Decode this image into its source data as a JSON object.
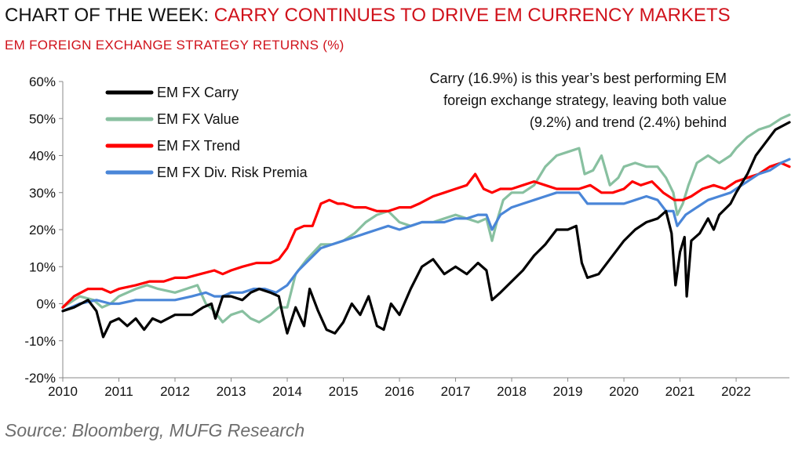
{
  "header": {
    "title_prefix": "CHART OF THE WEEK: ",
    "title_main": "CARRY CONTINUES TO DRIVE EM CURRENCY MARKETS",
    "subtitle": "EM FOREIGN EXCHANGE STRATEGY RETURNS (%)"
  },
  "annotation": {
    "lines": [
      "Carry (16.9%) is this year’s best performing EM",
      "foreign exchange strategy, leaving both value",
      "(9.2%) and trend (2.4%) behind"
    ]
  },
  "source": "Source: Bloomberg, MUFG Research",
  "chart_data": {
    "type": "line",
    "title": "EM FOREIGN EXCHANGE STRATEGY RETURNS (%)",
    "xlabel": "",
    "ylabel": "",
    "xlim": [
      2010.0,
      2022.95
    ],
    "ylim": [
      -20,
      60
    ],
    "y_ticks": [
      "-20%",
      "-10%",
      "0%",
      "10%",
      "20%",
      "30%",
      "40%",
      "50%",
      "60%"
    ],
    "x_ticks": [
      "2010",
      "2011",
      "2012",
      "2013",
      "2014",
      "2015",
      "2016",
      "2017",
      "2018",
      "2019",
      "2020",
      "2021",
      "2022"
    ],
    "grid": false,
    "legend_position": "top-left",
    "series": [
      {
        "name": "EM FX Carry",
        "color": "#000000",
        "points": [
          [
            2010.0,
            -2
          ],
          [
            2010.2,
            -1
          ],
          [
            2010.45,
            1
          ],
          [
            2010.6,
            -2
          ],
          [
            2010.72,
            -9
          ],
          [
            2010.85,
            -5
          ],
          [
            2011.0,
            -4
          ],
          [
            2011.15,
            -6
          ],
          [
            2011.3,
            -4
          ],
          [
            2011.45,
            -7
          ],
          [
            2011.6,
            -4
          ],
          [
            2011.75,
            -5
          ],
          [
            2012.0,
            -3
          ],
          [
            2012.3,
            -3
          ],
          [
            2012.5,
            -1
          ],
          [
            2012.65,
            0
          ],
          [
            2012.72,
            -4
          ],
          [
            2012.85,
            2
          ],
          [
            2013.0,
            2
          ],
          [
            2013.2,
            1
          ],
          [
            2013.35,
            3
          ],
          [
            2013.5,
            4
          ],
          [
            2013.7,
            3
          ],
          [
            2013.85,
            2
          ],
          [
            2013.92,
            -3
          ],
          [
            2014.0,
            -8
          ],
          [
            2014.15,
            -1
          ],
          [
            2014.3,
            -6
          ],
          [
            2014.4,
            4
          ],
          [
            2014.55,
            -2
          ],
          [
            2014.7,
            -7
          ],
          [
            2014.85,
            -8
          ],
          [
            2015.0,
            -5
          ],
          [
            2015.15,
            0
          ],
          [
            2015.3,
            -3
          ],
          [
            2015.45,
            2
          ],
          [
            2015.6,
            -6
          ],
          [
            2015.72,
            -7
          ],
          [
            2015.85,
            0
          ],
          [
            2016.0,
            -3
          ],
          [
            2016.2,
            4
          ],
          [
            2016.4,
            10
          ],
          [
            2016.6,
            12
          ],
          [
            2016.8,
            8
          ],
          [
            2017.0,
            10
          ],
          [
            2017.2,
            8
          ],
          [
            2017.4,
            11
          ],
          [
            2017.55,
            9
          ],
          [
            2017.65,
            1
          ],
          [
            2017.8,
            3
          ],
          [
            2018.0,
            6
          ],
          [
            2018.2,
            9
          ],
          [
            2018.4,
            13
          ],
          [
            2018.6,
            16
          ],
          [
            2018.8,
            20
          ],
          [
            2019.0,
            20
          ],
          [
            2019.15,
            21
          ],
          [
            2019.25,
            11
          ],
          [
            2019.35,
            7
          ],
          [
            2019.55,
            8
          ],
          [
            2019.75,
            12
          ],
          [
            2020.0,
            17
          ],
          [
            2020.2,
            20
          ],
          [
            2020.4,
            22
          ],
          [
            2020.6,
            23
          ],
          [
            2020.75,
            25
          ],
          [
            2020.85,
            19
          ],
          [
            2020.92,
            5
          ],
          [
            2021.0,
            14
          ],
          [
            2021.08,
            18
          ],
          [
            2021.12,
            2
          ],
          [
            2021.2,
            17
          ],
          [
            2021.35,
            19
          ],
          [
            2021.5,
            23
          ],
          [
            2021.6,
            20
          ],
          [
            2021.7,
            24
          ],
          [
            2021.9,
            27
          ],
          [
            2022.0,
            30
          ],
          [
            2022.2,
            35
          ],
          [
            2022.35,
            40
          ],
          [
            2022.5,
            43
          ],
          [
            2022.7,
            47
          ],
          [
            2022.95,
            49
          ]
        ]
      },
      {
        "name": "EM FX Value",
        "color": "#88c0a0",
        "points": [
          [
            2010.0,
            -1
          ],
          [
            2010.3,
            2
          ],
          [
            2010.55,
            1
          ],
          [
            2010.7,
            -1
          ],
          [
            2010.85,
            0
          ],
          [
            2011.0,
            2
          ],
          [
            2011.3,
            4
          ],
          [
            2011.5,
            5
          ],
          [
            2011.7,
            4
          ],
          [
            2012.0,
            3
          ],
          [
            2012.2,
            4
          ],
          [
            2012.4,
            5
          ],
          [
            2012.55,
            0
          ],
          [
            2012.7,
            -2
          ],
          [
            2012.85,
            -5
          ],
          [
            2013.0,
            -3
          ],
          [
            2013.2,
            -2
          ],
          [
            2013.35,
            -4
          ],
          [
            2013.5,
            -5
          ],
          [
            2013.7,
            -3
          ],
          [
            2013.85,
            -1
          ],
          [
            2014.0,
            -1
          ],
          [
            2014.15,
            8
          ],
          [
            2014.35,
            12
          ],
          [
            2014.6,
            16
          ],
          [
            2014.8,
            16
          ],
          [
            2015.0,
            17
          ],
          [
            2015.2,
            19
          ],
          [
            2015.4,
            22
          ],
          [
            2015.6,
            24
          ],
          [
            2015.8,
            25
          ],
          [
            2016.0,
            22
          ],
          [
            2016.2,
            21
          ],
          [
            2016.4,
            22
          ],
          [
            2016.6,
            22
          ],
          [
            2016.8,
            23
          ],
          [
            2017.0,
            24
          ],
          [
            2017.2,
            23
          ],
          [
            2017.4,
            22
          ],
          [
            2017.55,
            23
          ],
          [
            2017.65,
            17
          ],
          [
            2017.75,
            23
          ],
          [
            2017.85,
            28
          ],
          [
            2018.0,
            30
          ],
          [
            2018.2,
            30
          ],
          [
            2018.4,
            32
          ],
          [
            2018.6,
            37
          ],
          [
            2018.8,
            40
          ],
          [
            2019.0,
            41
          ],
          [
            2019.2,
            42
          ],
          [
            2019.3,
            35
          ],
          [
            2019.45,
            36
          ],
          [
            2019.6,
            40
          ],
          [
            2019.75,
            32
          ],
          [
            2019.9,
            34
          ],
          [
            2020.0,
            37
          ],
          [
            2020.2,
            38
          ],
          [
            2020.4,
            37
          ],
          [
            2020.6,
            37
          ],
          [
            2020.75,
            34
          ],
          [
            2020.88,
            30
          ],
          [
            2020.95,
            24
          ],
          [
            2021.05,
            27
          ],
          [
            2021.15,
            32
          ],
          [
            2021.3,
            38
          ],
          [
            2021.5,
            40
          ],
          [
            2021.7,
            38
          ],
          [
            2021.9,
            40
          ],
          [
            2022.0,
            42
          ],
          [
            2022.2,
            45
          ],
          [
            2022.4,
            47
          ],
          [
            2022.6,
            48
          ],
          [
            2022.8,
            50
          ],
          [
            2022.95,
            51
          ]
        ]
      },
      {
        "name": "EM FX Trend",
        "color": "#ff0000",
        "points": [
          [
            2010.0,
            -1
          ],
          [
            2010.2,
            2
          ],
          [
            2010.45,
            4
          ],
          [
            2010.7,
            4
          ],
          [
            2010.85,
            3
          ],
          [
            2011.0,
            4
          ],
          [
            2011.3,
            5
          ],
          [
            2011.55,
            6
          ],
          [
            2011.8,
            6
          ],
          [
            2012.0,
            7
          ],
          [
            2012.2,
            7
          ],
          [
            2012.45,
            8
          ],
          [
            2012.7,
            9
          ],
          [
            2012.85,
            8
          ],
          [
            2013.0,
            9
          ],
          [
            2013.2,
            10
          ],
          [
            2013.45,
            11
          ],
          [
            2013.7,
            11
          ],
          [
            2013.85,
            12
          ],
          [
            2014.0,
            15
          ],
          [
            2014.15,
            20
          ],
          [
            2014.3,
            21
          ],
          [
            2014.45,
            21
          ],
          [
            2014.6,
            27
          ],
          [
            2014.75,
            28
          ],
          [
            2014.9,
            27
          ],
          [
            2015.0,
            27
          ],
          [
            2015.2,
            26
          ],
          [
            2015.4,
            26
          ],
          [
            2015.6,
            25
          ],
          [
            2015.8,
            25
          ],
          [
            2016.0,
            26
          ],
          [
            2016.2,
            26
          ],
          [
            2016.35,
            27
          ],
          [
            2016.6,
            29
          ],
          [
            2016.8,
            30
          ],
          [
            2017.0,
            31
          ],
          [
            2017.2,
            32
          ],
          [
            2017.35,
            35
          ],
          [
            2017.5,
            31
          ],
          [
            2017.65,
            30
          ],
          [
            2017.8,
            31
          ],
          [
            2018.0,
            31
          ],
          [
            2018.2,
            32
          ],
          [
            2018.4,
            33
          ],
          [
            2018.6,
            32
          ],
          [
            2018.8,
            31
          ],
          [
            2019.0,
            31
          ],
          [
            2019.2,
            31
          ],
          [
            2019.4,
            32
          ],
          [
            2019.6,
            30
          ],
          [
            2019.8,
            30
          ],
          [
            2020.0,
            31
          ],
          [
            2020.15,
            33
          ],
          [
            2020.3,
            32
          ],
          [
            2020.5,
            33
          ],
          [
            2020.7,
            30
          ],
          [
            2020.9,
            28
          ],
          [
            2021.05,
            28
          ],
          [
            2021.2,
            29
          ],
          [
            2021.4,
            31
          ],
          [
            2021.6,
            32
          ],
          [
            2021.8,
            31
          ],
          [
            2022.0,
            33
          ],
          [
            2022.2,
            34
          ],
          [
            2022.4,
            35
          ],
          [
            2022.6,
            37
          ],
          [
            2022.8,
            38
          ],
          [
            2022.95,
            37
          ]
        ]
      },
      {
        "name": "EM FX Div. Risk Premia",
        "color": "#4a86d8",
        "points": [
          [
            2010.0,
            -2
          ],
          [
            2010.3,
            0
          ],
          [
            2010.6,
            1
          ],
          [
            2010.85,
            0
          ],
          [
            2011.0,
            0
          ],
          [
            2011.3,
            1
          ],
          [
            2011.6,
            1
          ],
          [
            2011.85,
            1
          ],
          [
            2012.0,
            1
          ],
          [
            2012.3,
            2
          ],
          [
            2012.55,
            3
          ],
          [
            2012.7,
            2
          ],
          [
            2012.85,
            2
          ],
          [
            2013.0,
            3
          ],
          [
            2013.2,
            3
          ],
          [
            2013.4,
            4
          ],
          [
            2013.6,
            4
          ],
          [
            2013.8,
            3
          ],
          [
            2014.0,
            5
          ],
          [
            2014.2,
            9
          ],
          [
            2014.4,
            12
          ],
          [
            2014.6,
            15
          ],
          [
            2014.8,
            16
          ],
          [
            2015.0,
            17
          ],
          [
            2015.2,
            18
          ],
          [
            2015.4,
            19
          ],
          [
            2015.6,
            20
          ],
          [
            2015.8,
            21
          ],
          [
            2016.0,
            20
          ],
          [
            2016.2,
            21
          ],
          [
            2016.4,
            22
          ],
          [
            2016.6,
            22
          ],
          [
            2016.8,
            22
          ],
          [
            2017.0,
            23
          ],
          [
            2017.2,
            23
          ],
          [
            2017.4,
            24
          ],
          [
            2017.55,
            24
          ],
          [
            2017.65,
            20
          ],
          [
            2017.8,
            24
          ],
          [
            2018.0,
            26
          ],
          [
            2018.2,
            27
          ],
          [
            2018.4,
            28
          ],
          [
            2018.6,
            29
          ],
          [
            2018.8,
            30
          ],
          [
            2019.0,
            30
          ],
          [
            2019.2,
            30
          ],
          [
            2019.35,
            27
          ],
          [
            2019.5,
            27
          ],
          [
            2019.7,
            27
          ],
          [
            2019.9,
            27
          ],
          [
            2020.0,
            27
          ],
          [
            2020.2,
            28
          ],
          [
            2020.4,
            29
          ],
          [
            2020.6,
            28
          ],
          [
            2020.75,
            25
          ],
          [
            2020.88,
            25
          ],
          [
            2020.95,
            21
          ],
          [
            2021.1,
            24
          ],
          [
            2021.3,
            26
          ],
          [
            2021.5,
            28
          ],
          [
            2021.7,
            29
          ],
          [
            2021.9,
            30
          ],
          [
            2022.0,
            31
          ],
          [
            2022.2,
            33
          ],
          [
            2022.4,
            35
          ],
          [
            2022.6,
            36
          ],
          [
            2022.8,
            38
          ],
          [
            2022.95,
            39
          ]
        ]
      }
    ]
  }
}
